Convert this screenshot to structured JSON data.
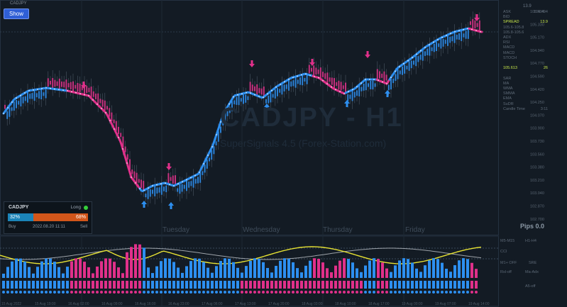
{
  "toolbar": {
    "show_label": "Show"
  },
  "header": {
    "symbol": "CADJPY"
  },
  "watermark": {
    "title": "CADJPY - H1",
    "subtitle": "SuperSignals 4.5 (Forex-Station.com)"
  },
  "footer": {
    "pips": "Pips 0.0"
  },
  "days": [
    "Tuesday",
    "Wednesday",
    "Thursday",
    "Friday"
  ],
  "dashboard": {
    "top_value": "13.9",
    "rows": [
      {
        "k": "ASK",
        "v": "105.494"
      },
      {
        "k": "BID",
        "v": ""
      },
      {
        "k": "SPREAD",
        "v": "13.9"
      },
      {
        "k": "105.6-105.8",
        "v": ""
      },
      {
        "k": "105.8-105.6",
        "v": ""
      },
      {
        "k": "ADX",
        "v": ""
      },
      {
        "k": "RSI",
        "v": ""
      },
      {
        "k": "MACD",
        "v": ""
      },
      {
        "k": "MACD",
        "v": ""
      },
      {
        "k": "STOCH",
        "v": ""
      },
      {
        "k": "",
        "v": ""
      },
      {
        "k": "105.613",
        "v": "26"
      },
      {
        "k": "",
        "v": ""
      },
      {
        "k": "SAR",
        "v": ""
      },
      {
        "k": "MA",
        "v": ""
      },
      {
        "k": "WMA",
        "v": ""
      },
      {
        "k": "SMMA",
        "v": ""
      },
      {
        "k": "EMA",
        "v": ""
      },
      {
        "k": "SuDR",
        "v": ""
      },
      {
        "k": "Candle Time",
        "v": "3:11"
      }
    ]
  },
  "panel_labels": [
    "M5-M15",
    "H1-H4",
    "CCI",
    "M1+ OFF",
    "SRE",
    "Rsl-off",
    "Ma-Adx",
    "A5-off"
  ],
  "signal_box": {
    "symbol": "CADJPY",
    "direction": "Long",
    "buy_pct": 32,
    "sell_pct": 68,
    "buy_label": "Buy",
    "sell_label": "Sell",
    "datetime": "2022.08.20 11:11",
    "long_color": "#35d13a"
  },
  "axis": {
    "price_ticks": [
      "105.494",
      "105.330",
      "105.170",
      "104.940",
      "104.770",
      "104.590",
      "104.420",
      "104.250",
      "104.070",
      "103.900",
      "103.730",
      "103.560",
      "103.380",
      "103.210",
      "103.040",
      "102.870",
      "102.700"
    ],
    "date_ticks": [
      "15 Aug 2022",
      "15 Aug 19:00",
      "16 Aug 02:00",
      "16 Aug 09:00",
      "16 Aug 16:00",
      "16 Aug 23:00",
      "17 Aug 06:00",
      "17 Aug 13:00",
      "17 Aug 20:00",
      "18 Aug 03:00",
      "18 Aug 10:00",
      "18 Aug 17:00",
      "19 Aug 00:00",
      "19 Aug 07:00",
      "19 Aug 14:00"
    ]
  },
  "colors": {
    "background": "#131b24",
    "bull": "#2d8ff0",
    "bear": "#e0308a",
    "yellow": "#e7e233",
    "white_line": "#d8dde3"
  }
}
